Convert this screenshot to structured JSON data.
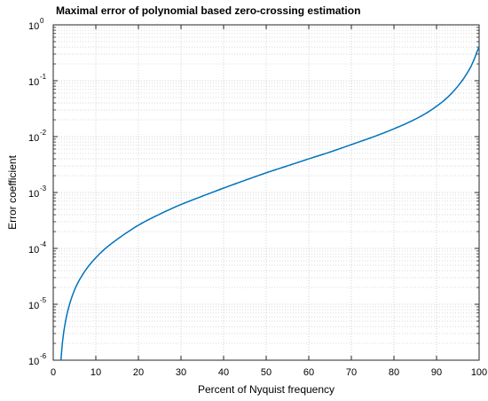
{
  "chart_data": {
    "type": "line",
    "title": "Maximal error of polynomial based zero-crossing estimation",
    "xlabel": "Percent of Nyquist frequency",
    "ylabel": "Error coefficient",
    "xlim": [
      0,
      100
    ],
    "ylim": [
      1e-06,
      1
    ],
    "yscale": "log",
    "grid": true,
    "x_ticks": [
      "0",
      "10",
      "20",
      "30",
      "40",
      "50",
      "60",
      "70",
      "80",
      "90",
      "100"
    ],
    "y_ticks": [
      {
        "base": "10",
        "exp": "0"
      },
      {
        "base": "10",
        "exp": "-1"
      },
      {
        "base": "10",
        "exp": "-2"
      },
      {
        "base": "10",
        "exp": "-3"
      },
      {
        "base": "10",
        "exp": "-4"
      },
      {
        "base": "10",
        "exp": "-5"
      },
      {
        "base": "10",
        "exp": "-6"
      }
    ],
    "series": [
      {
        "color": "#0072BD",
        "x": [
          1.8,
          2.2,
          3,
          4,
          5,
          6,
          8,
          10,
          12,
          15,
          20,
          25,
          30,
          35,
          40,
          45,
          50,
          55,
          60,
          65,
          70,
          75,
          80,
          85,
          88,
          90,
          92,
          94,
          96,
          97,
          98,
          99,
          99.5,
          100
        ],
        "y": [
          1e-06,
          2.2e-06,
          5.5e-06,
          1.1e-05,
          1.8e-05,
          2.6e-05,
          4.5e-05,
          6.8e-05,
          9.6e-05,
          0.000145,
          0.00026,
          0.00041,
          0.00061,
          0.00086,
          0.0012,
          0.00165,
          0.00225,
          0.003,
          0.004,
          0.0053,
          0.0072,
          0.0098,
          0.0138,
          0.0205,
          0.0275,
          0.035,
          0.046,
          0.065,
          0.1,
          0.13,
          0.175,
          0.26,
          0.33,
          0.4
        ]
      }
    ]
  }
}
